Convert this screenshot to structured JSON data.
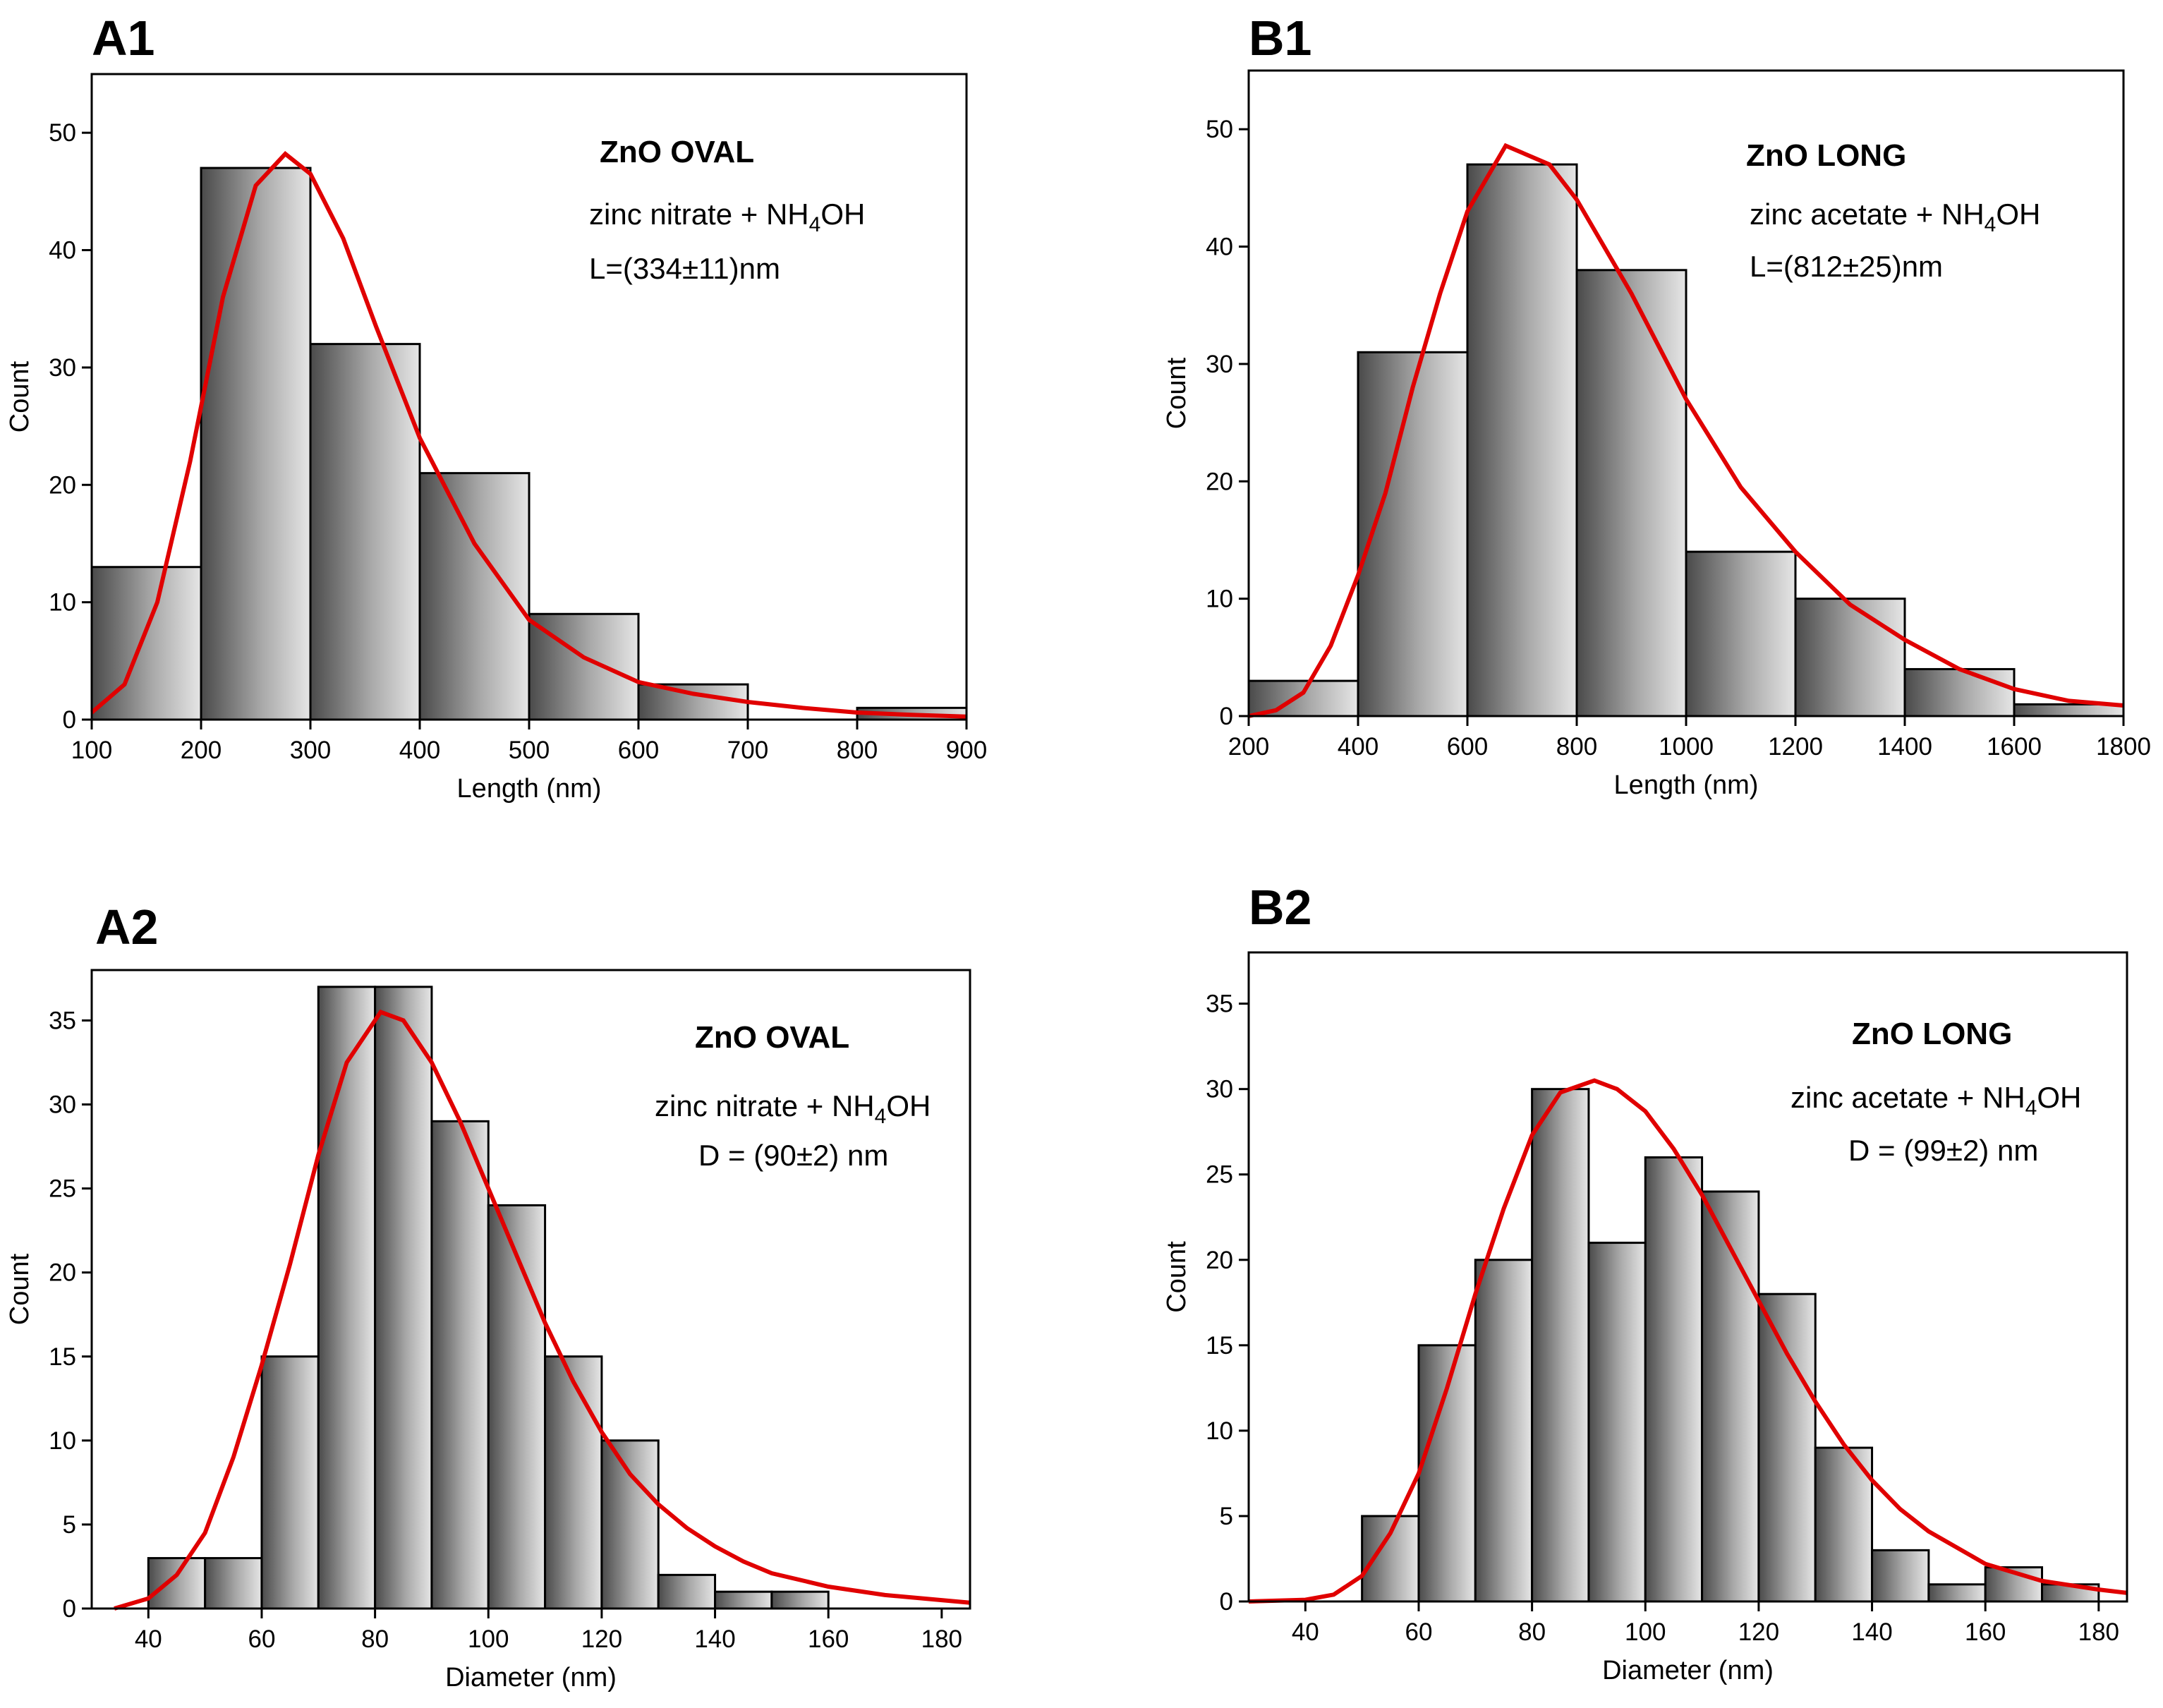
{
  "chart_data": [
    {
      "id": "A1",
      "panel_label": "A1",
      "type": "bar",
      "subtype": "histogram",
      "title": "ZnO OVAL",
      "annotations": [
        "zinc nitrate + NH",
        "4",
        "OH",
        "L=(334±11)nm"
      ],
      "xlabel": "Length (nm)",
      "ylabel": "Count",
      "xlim": [
        100,
        900
      ],
      "ylim": [
        0,
        55
      ],
      "xticks": [
        100,
        200,
        300,
        400,
        500,
        600,
        700,
        800,
        900
      ],
      "yticks": [
        0,
        10,
        20,
        30,
        40,
        50
      ],
      "bins": [
        {
          "start": 100,
          "end": 200,
          "count": 13
        },
        {
          "start": 200,
          "end": 300,
          "count": 47
        },
        {
          "start": 300,
          "end": 400,
          "count": 32
        },
        {
          "start": 400,
          "end": 500,
          "count": 21
        },
        {
          "start": 500,
          "end": 600,
          "count": 9
        },
        {
          "start": 600,
          "end": 700,
          "count": 3
        },
        {
          "start": 700,
          "end": 800,
          "count": 0
        },
        {
          "start": 800,
          "end": 900,
          "count": 1
        }
      ],
      "fit": {
        "type": "lognormal",
        "peak_x": 277,
        "peak_y": 48.2,
        "points": [
          [
            100,
            0.6
          ],
          [
            130,
            3
          ],
          [
            160,
            10
          ],
          [
            190,
            22
          ],
          [
            220,
            36
          ],
          [
            250,
            45.5
          ],
          [
            277,
            48.2
          ],
          [
            300,
            46.5
          ],
          [
            330,
            41
          ],
          [
            360,
            33.5
          ],
          [
            400,
            24
          ],
          [
            450,
            15
          ],
          [
            500,
            8.5
          ],
          [
            550,
            5.3
          ],
          [
            600,
            3.2
          ],
          [
            650,
            2.2
          ],
          [
            700,
            1.5
          ],
          [
            750,
            1.0
          ],
          [
            800,
            0.6
          ],
          [
            850,
            0.4
          ],
          [
            900,
            0.25
          ]
        ]
      }
    },
    {
      "id": "B1",
      "panel_label": "B1",
      "type": "bar",
      "subtype": "histogram",
      "title": "ZnO LONG",
      "annotations": [
        "zinc acetate + NH",
        "4",
        "OH",
        "L=(812±25)nm"
      ],
      "xlabel": "Length (nm)",
      "ylabel": "Count",
      "xlim": [
        200,
        1800
      ],
      "ylim": [
        0,
        55
      ],
      "xticks": [
        200,
        400,
        600,
        800,
        1000,
        1200,
        1400,
        1600,
        1800
      ],
      "yticks": [
        0,
        10,
        20,
        30,
        40,
        50
      ],
      "bins": [
        {
          "start": 200,
          "end": 400,
          "count": 3
        },
        {
          "start": 400,
          "end": 600,
          "count": 31
        },
        {
          "start": 600,
          "end": 800,
          "count": 47
        },
        {
          "start": 800,
          "end": 1000,
          "count": 38
        },
        {
          "start": 1000,
          "end": 1200,
          "count": 14
        },
        {
          "start": 1200,
          "end": 1400,
          "count": 10
        },
        {
          "start": 1400,
          "end": 1600,
          "count": 4
        },
        {
          "start": 1600,
          "end": 1800,
          "count": 1
        }
      ],
      "fit": {
        "type": "lognormal",
        "peak_x": 670,
        "peak_y": 48.6,
        "points": [
          [
            200,
            0
          ],
          [
            250,
            0.5
          ],
          [
            300,
            2
          ],
          [
            350,
            6
          ],
          [
            400,
            12
          ],
          [
            450,
            19
          ],
          [
            500,
            28
          ],
          [
            550,
            36
          ],
          [
            600,
            43
          ],
          [
            670,
            48.6
          ],
          [
            750,
            47
          ],
          [
            800,
            44
          ],
          [
            900,
            36
          ],
          [
            1000,
            27
          ],
          [
            1100,
            19.5
          ],
          [
            1200,
            14
          ],
          [
            1300,
            9.5
          ],
          [
            1400,
            6.5
          ],
          [
            1500,
            4
          ],
          [
            1600,
            2.3
          ],
          [
            1700,
            1.3
          ],
          [
            1800,
            0.9
          ]
        ]
      }
    },
    {
      "id": "A2",
      "panel_label": "A2",
      "type": "bar",
      "subtype": "histogram",
      "title": "ZnO OVAL",
      "annotations": [
        "zinc nitrate + NH",
        "4",
        "OH",
        "D = (90±2) nm"
      ],
      "xlabel": "Diameter (nm)",
      "ylabel": "Count",
      "xlim": [
        30,
        185
      ],
      "ylim": [
        0,
        38
      ],
      "xticks": [
        40,
        60,
        80,
        100,
        120,
        140,
        160,
        180
      ],
      "yticks": [
        0,
        5,
        10,
        15,
        20,
        25,
        30,
        35
      ],
      "bins": [
        {
          "start": 40,
          "end": 50,
          "count": 3
        },
        {
          "start": 50,
          "end": 60,
          "count": 3
        },
        {
          "start": 60,
          "end": 70,
          "count": 15
        },
        {
          "start": 70,
          "end": 80,
          "count": 37
        },
        {
          "start": 80,
          "end": 90,
          "count": 37
        },
        {
          "start": 90,
          "end": 100,
          "count": 29
        },
        {
          "start": 100,
          "end": 110,
          "count": 24
        },
        {
          "start": 110,
          "end": 120,
          "count": 15
        },
        {
          "start": 120,
          "end": 130,
          "count": 10
        },
        {
          "start": 130,
          "end": 140,
          "count": 2
        },
        {
          "start": 140,
          "end": 150,
          "count": 1
        },
        {
          "start": 150,
          "end": 160,
          "count": 1
        }
      ],
      "fit": {
        "type": "lognormal",
        "peak_x": 81,
        "peak_y": 35.5,
        "points": [
          [
            34,
            0
          ],
          [
            40,
            0.6
          ],
          [
            45,
            2
          ],
          [
            50,
            4.5
          ],
          [
            55,
            9
          ],
          [
            60,
            14.5
          ],
          [
            65,
            20.5
          ],
          [
            70,
            27
          ],
          [
            75,
            32.5
          ],
          [
            81,
            35.5
          ],
          [
            85,
            35
          ],
          [
            90,
            32.5
          ],
          [
            95,
            29
          ],
          [
            100,
            25
          ],
          [
            105,
            21
          ],
          [
            110,
            17
          ],
          [
            115,
            13.5
          ],
          [
            120,
            10.5
          ],
          [
            125,
            8
          ],
          [
            130,
            6.2
          ],
          [
            135,
            4.8
          ],
          [
            140,
            3.7
          ],
          [
            145,
            2.8
          ],
          [
            150,
            2.1
          ],
          [
            160,
            1.3
          ],
          [
            170,
            0.8
          ],
          [
            180,
            0.5
          ],
          [
            185,
            0.35
          ]
        ]
      }
    },
    {
      "id": "B2",
      "panel_label": "B2",
      "type": "bar",
      "subtype": "histogram",
      "title": "ZnO LONG",
      "annotations": [
        "zinc acetate + NH",
        "4",
        "OH",
        "D = (99±2) nm"
      ],
      "xlabel": "Diameter (nm)",
      "ylabel": "Count",
      "xlim": [
        30,
        185
      ],
      "ylim": [
        0,
        38
      ],
      "xticks": [
        40,
        60,
        80,
        100,
        120,
        140,
        160,
        180
      ],
      "yticks": [
        0,
        5,
        10,
        15,
        20,
        25,
        30,
        35
      ],
      "bins": [
        {
          "start": 50,
          "end": 60,
          "count": 5
        },
        {
          "start": 60,
          "end": 70,
          "count": 15
        },
        {
          "start": 70,
          "end": 80,
          "count": 20
        },
        {
          "start": 80,
          "end": 90,
          "count": 30
        },
        {
          "start": 90,
          "end": 100,
          "count": 21
        },
        {
          "start": 100,
          "end": 110,
          "count": 26
        },
        {
          "start": 110,
          "end": 120,
          "count": 24
        },
        {
          "start": 120,
          "end": 130,
          "count": 18
        },
        {
          "start": 130,
          "end": 140,
          "count": 9
        },
        {
          "start": 140,
          "end": 150,
          "count": 3
        },
        {
          "start": 150,
          "end": 160,
          "count": 1
        },
        {
          "start": 160,
          "end": 170,
          "count": 2
        },
        {
          "start": 170,
          "end": 180,
          "count": 1
        }
      ],
      "fit": {
        "type": "lognormal",
        "peak_x": 91,
        "peak_y": 30.5,
        "points": [
          [
            30,
            0
          ],
          [
            40,
            0.1
          ],
          [
            45,
            0.4
          ],
          [
            50,
            1.5
          ],
          [
            55,
            4
          ],
          [
            60,
            7.5
          ],
          [
            65,
            12.5
          ],
          [
            70,
            18
          ],
          [
            75,
            23
          ],
          [
            80,
            27.3
          ],
          [
            85,
            29.8
          ],
          [
            91,
            30.5
          ],
          [
            95,
            30
          ],
          [
            100,
            28.7
          ],
          [
            105,
            26.5
          ],
          [
            110,
            23.8
          ],
          [
            115,
            20.7
          ],
          [
            120,
            17.6
          ],
          [
            125,
            14.5
          ],
          [
            130,
            11.7
          ],
          [
            135,
            9.2
          ],
          [
            140,
            7.1
          ],
          [
            145,
            5.4
          ],
          [
            150,
            4.1
          ],
          [
            160,
            2.2
          ],
          [
            170,
            1.2
          ],
          [
            180,
            0.7
          ],
          [
            185,
            0.5
          ]
        ]
      }
    }
  ]
}
